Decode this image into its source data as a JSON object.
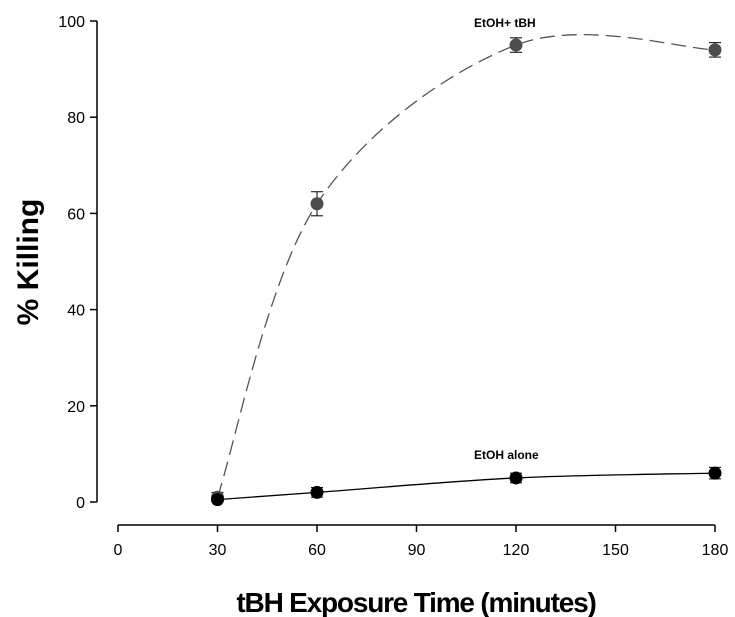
{
  "chart_data": {
    "type": "line",
    "title": "",
    "xlabel": "tBH Exposure Time (minutes)",
    "ylabel": "% Killing",
    "xlim": [
      0,
      180
    ],
    "ylim": [
      0,
      100
    ],
    "x_ticks": [
      "0",
      "30",
      "60",
      "90",
      "120",
      "150",
      "180"
    ],
    "y_ticks": [
      "0",
      "20",
      "40",
      "60",
      "80",
      "100"
    ],
    "grid": false,
    "legend": "none",
    "series": [
      {
        "name": "EtOH+ tBH",
        "color": "#4d4d4d",
        "line_style": "dashed",
        "x": [
          30,
          60,
          120,
          180
        ],
        "y": [
          1,
          62,
          95,
          94
        ],
        "error": [
          1,
          2.5,
          1.5,
          1.5
        ]
      },
      {
        "name": "EtOH alone",
        "color": "#000000",
        "line_style": "solid",
        "x": [
          30,
          60,
          120,
          180
        ],
        "y": [
          0.5,
          2,
          5,
          6
        ],
        "error": [
          0.5,
          1,
          1,
          1.2
        ]
      }
    ]
  }
}
